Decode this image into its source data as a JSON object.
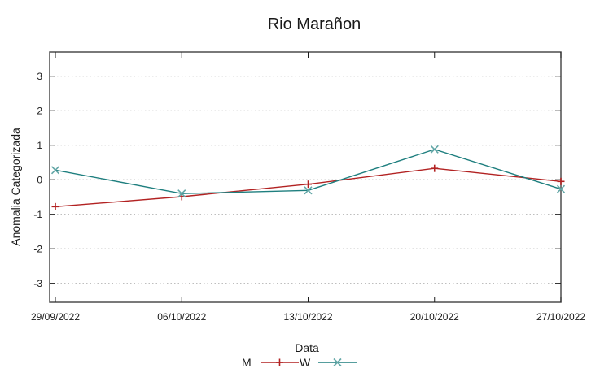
{
  "chart_data": {
    "type": "line",
    "title": "Rio Marañon",
    "xlabel": "Data",
    "ylabel": "Anomalia Categorizada",
    "x_tick_labels": [
      "29/09/2022",
      "06/10/2022",
      "13/10/2022",
      "20/10/2022",
      "27/10/2022"
    ],
    "y_ticks": [
      -3,
      -2,
      -1,
      0,
      1,
      2,
      3
    ],
    "ylim": [
      -3.55,
      3.7
    ],
    "grid": "horizontal-dotted",
    "legend_position": "bottom-center",
    "series": [
      {
        "name": "M",
        "marker": "plus",
        "color": "#b22222",
        "marker_color": "#b22222",
        "values": [
          -0.78,
          -0.49,
          -0.13,
          0.33,
          -0.05
        ]
      },
      {
        "name": "W",
        "marker": "cross",
        "color": "#1f7f7f",
        "marker_color": "#63a7a7",
        "values": [
          0.28,
          -0.4,
          -0.31,
          0.88,
          -0.27
        ]
      }
    ],
    "colors": {
      "border": "#4d4d4d",
      "grid": "#b5b5b5",
      "tick": "#1a1a1a",
      "text": "#1a1a1a",
      "background": "#ffffff"
    }
  }
}
